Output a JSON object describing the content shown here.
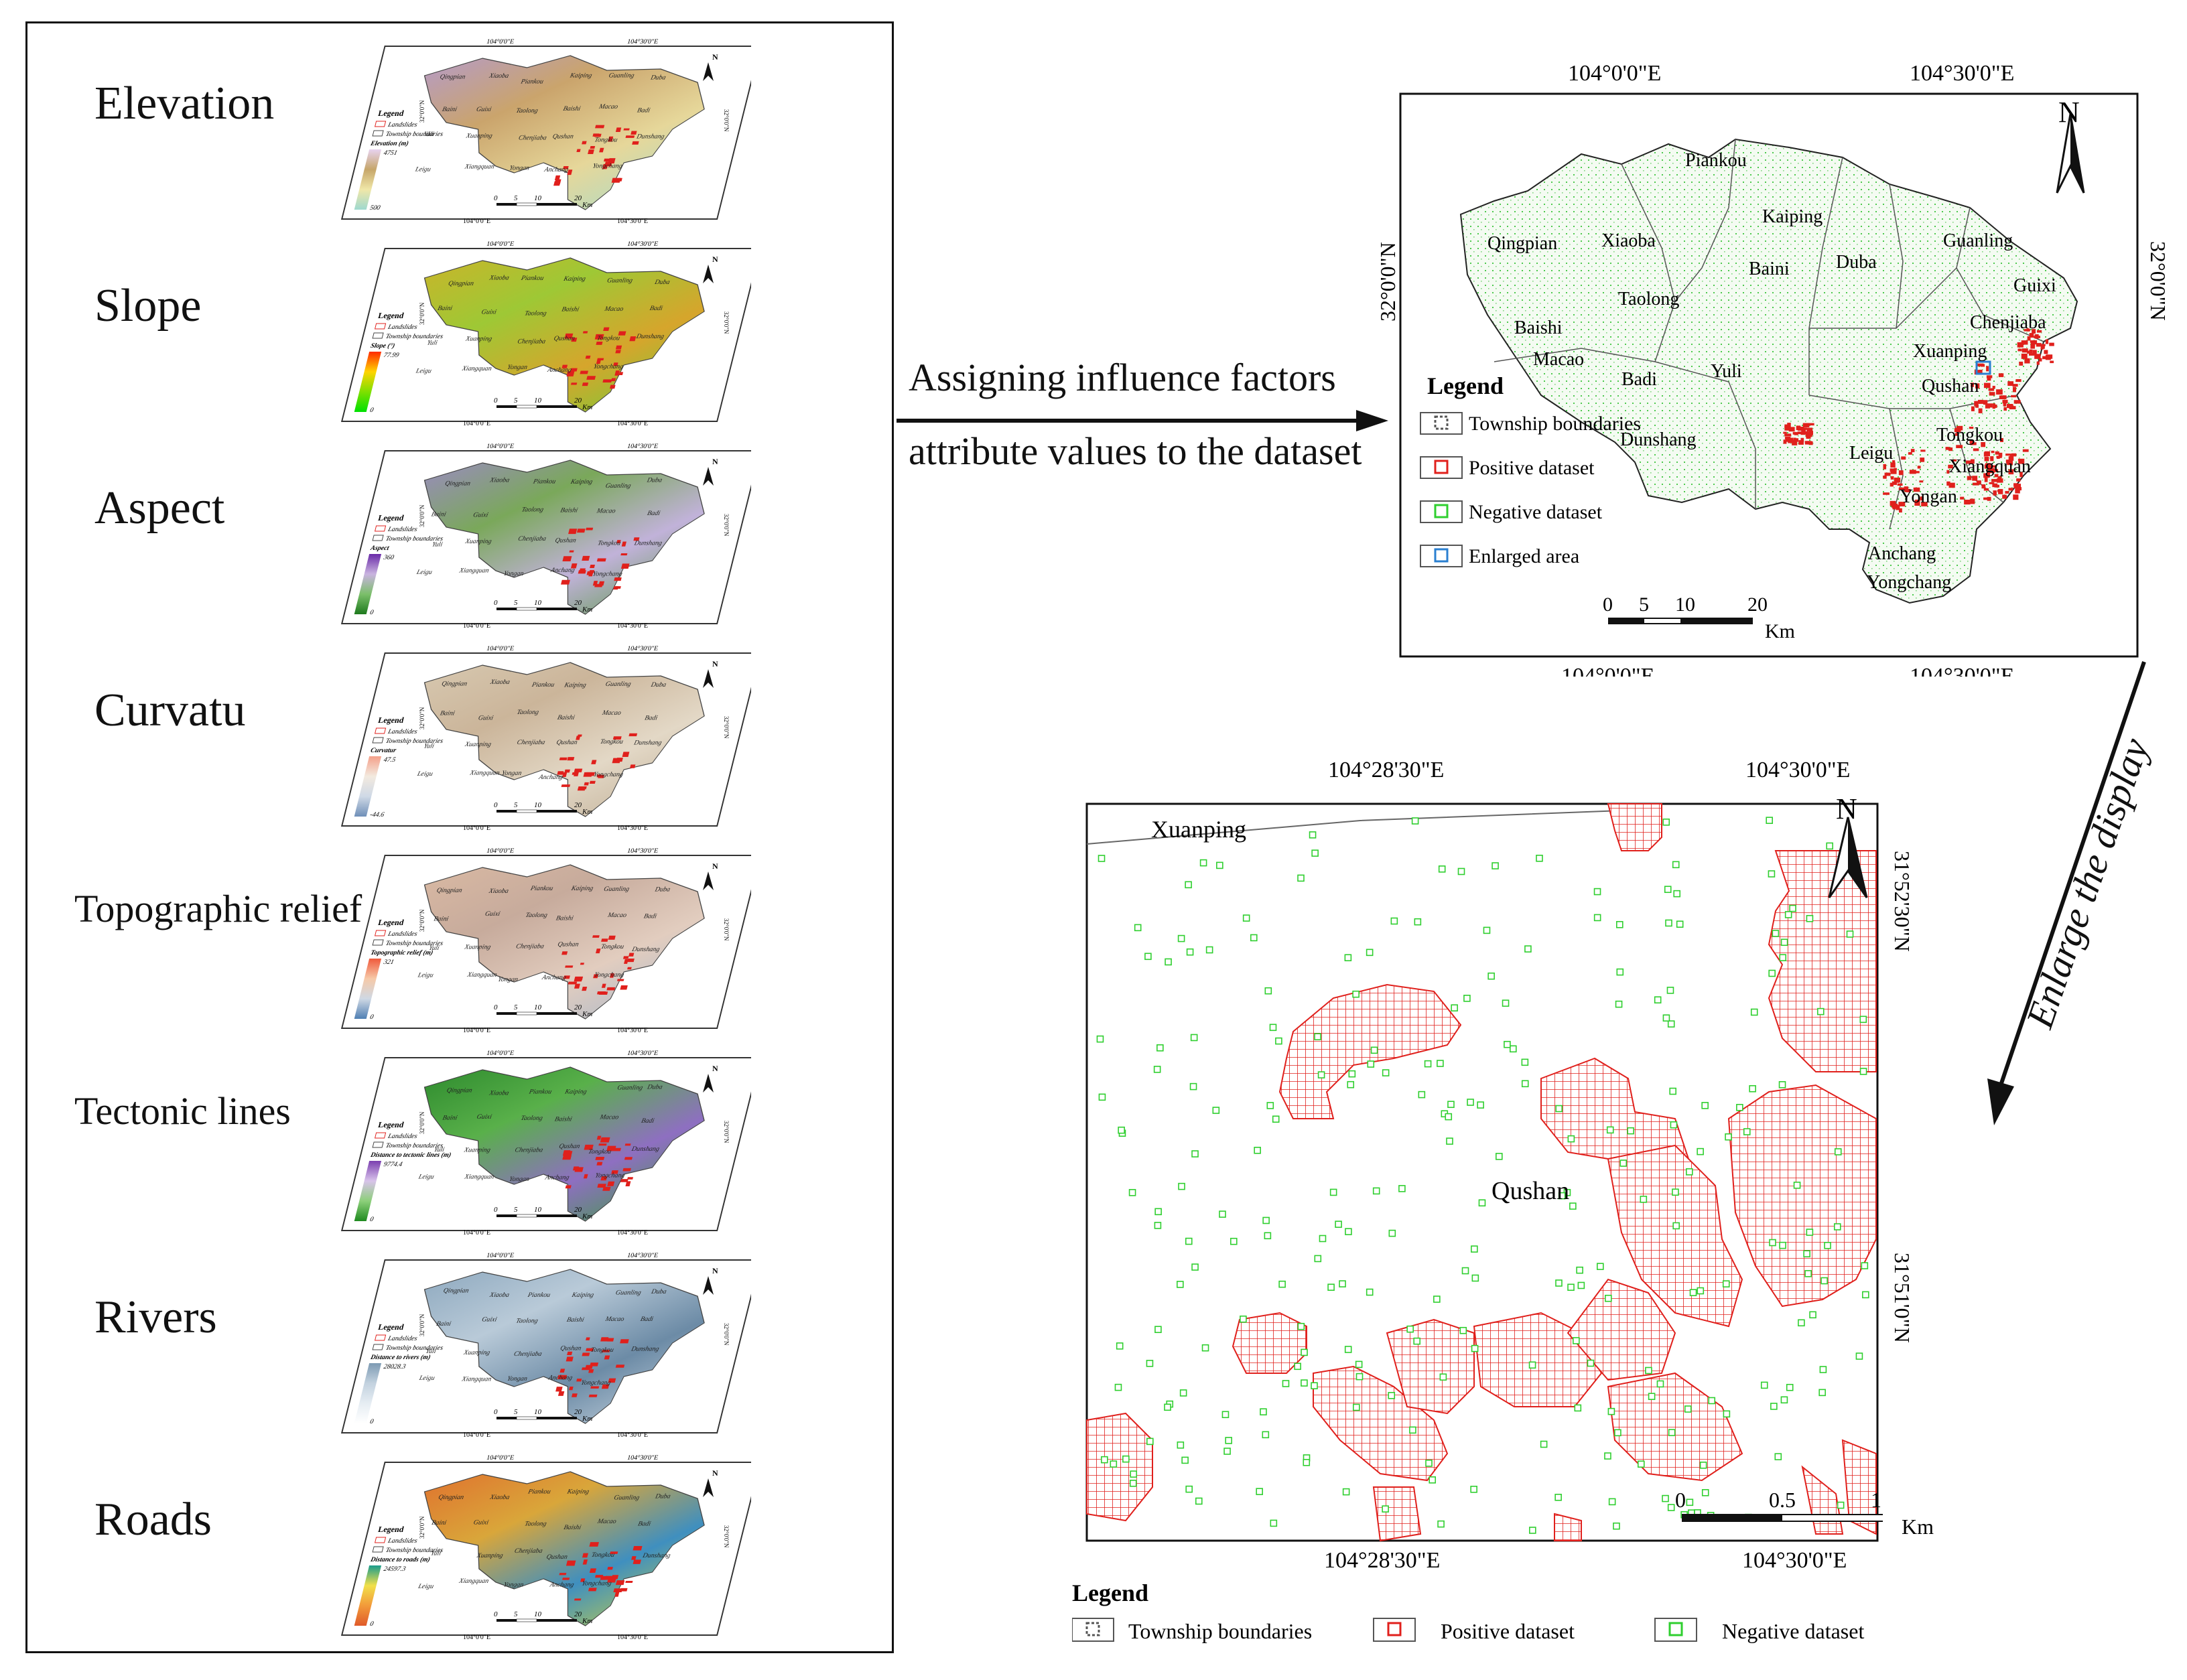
{
  "factors": [
    {
      "label": "Elevation",
      "legend_title": "Elevation (m)",
      "max": "4751",
      "min": "500",
      "ramp": [
        "#e8d3f0",
        "#c6a66a",
        "#f0e7a8",
        "#9ed9cf"
      ],
      "terrain": [
        "#b59bc9",
        "#caa46c",
        "#e6d79a",
        "#a7dccb"
      ]
    },
    {
      "label": "Slope",
      "legend_title": "Slope (°)",
      "max": "77.99",
      "min": "0",
      "ramp": [
        "#ff2a00",
        "#ffd400",
        "#7ee000",
        "#00e000"
      ],
      "terrain": [
        "#c9b52a",
        "#9ec835",
        "#d6a52c",
        "#6fcf3a"
      ]
    },
    {
      "label": "Aspect",
      "legend_title": "Aspect",
      "max": "360",
      "min": "0",
      "ramp": [
        "#6a2aa8",
        "#c9b3e0",
        "#7bbf6a",
        "#1d7a1d"
      ],
      "terrain": [
        "#9a8bc0",
        "#7aa85a",
        "#c1b2d9",
        "#5c9a48"
      ]
    },
    {
      "label": "Curvatu",
      "legend_title": "Curvatur",
      "max": "47.5",
      "min": "-44.6",
      "ramp": [
        "#f4a08a",
        "#f3eadf",
        "#cfd9e6",
        "#6f8fb8"
      ],
      "terrain": [
        "#d7c8b0",
        "#cbb59a",
        "#e3d8c6",
        "#bfae95"
      ]
    },
    {
      "label": "Topographic relief",
      "legend_title": "Topographic relief (m)",
      "max": "321",
      "min": "0",
      "ramp": [
        "#f05a3c",
        "#f6c9a8",
        "#cfd8e4",
        "#4f7fb3"
      ],
      "terrain": [
        "#d9b9a3",
        "#c7ab9c",
        "#e2cdbf",
        "#a8b8cb"
      ]
    },
    {
      "label": "Tectonic lines",
      "legend_title": "Distance to tectonic lines (m)",
      "max": "9774.4",
      "min": "0",
      "ramp": [
        "#7b3fb0",
        "#d8c3ea",
        "#8ccf7a",
        "#1f8a1f"
      ],
      "terrain": [
        "#2e8b2e",
        "#59b04a",
        "#8e6fc1",
        "#3aa03a"
      ]
    },
    {
      "label": "Rivers",
      "legend_title": "Distance to rivers (m)",
      "max": "28028.3",
      "min": "0",
      "ramp": [
        "#7d9ab3",
        "#c3d2df",
        "#e6edf3",
        "#ffffff"
      ],
      "terrain": [
        "#8ea9bf",
        "#b9cad8",
        "#6c8ba6",
        "#c8d5e0"
      ]
    },
    {
      "label": "Roads",
      "legend_title": "Distance to roads (m)",
      "max": "24597.3",
      "min": "0",
      "ramp": [
        "#1a9c8c",
        "#f1e04a",
        "#f29a3a",
        "#e05a2a"
      ],
      "terrain": [
        "#e0722e",
        "#d9a63a",
        "#3f8fbf",
        "#cfd43e"
      ]
    }
  ],
  "small_map": {
    "legend_title": "Legend",
    "legend_landslides": "Landslides",
    "legend_township": "Township boundaries",
    "top_left_coord": "104°0'0\"E",
    "top_right_coord": "104°30'0\"E",
    "bottom_left_coord": "104°0'0\"E",
    "bottom_right_coord": "104°30'0\"E",
    "left_coord": "32°0'0\"N",
    "right_coord": "32°0'0\"N",
    "north": "N",
    "scale_ticks": [
      "0",
      "5",
      "10",
      "20"
    ],
    "scale_unit": "Km",
    "townships": [
      "Qingpian",
      "Xiaoba",
      "Piankou",
      "Kaiping",
      "Guanling",
      "Duba",
      "Baini",
      "Guixi",
      "Taolong",
      "Baishi",
      "Macao",
      "Badi",
      "Yuli",
      "Xuanping",
      "Chenjiaba",
      "Qushan",
      "Tongkou",
      "Dunshang",
      "Leigu",
      "Xiangquan",
      "Yongan",
      "Anchang",
      "Yongchang"
    ]
  },
  "arrow_labels": {
    "line1": "Assigning influence factors",
    "line2": "attribute values to the dataset",
    "enlarge": "Enlarge the display"
  },
  "overview_map": {
    "top_coords": [
      "104°0'0\"E",
      "104°30'0\"E"
    ],
    "bottom_coords": [
      "104°0'0\"E",
      "104°30'0\"E"
    ],
    "left_coord": "32°0'0\"N",
    "right_coord": "32°0'0\"N",
    "north": "N",
    "legend_title": "Legend",
    "legend_items": [
      "Township boundaries",
      "Positive dataset",
      "Negative dataset",
      "Enlarged area"
    ],
    "scale_ticks": [
      "0",
      "5",
      "10",
      "20"
    ],
    "scale_unit": "Km",
    "townships": [
      {
        "name": "Piankou"
      },
      {
        "name": "Kaiping"
      },
      {
        "name": "Qingpian"
      },
      {
        "name": "Xiaoba"
      },
      {
        "name": "Guanling"
      },
      {
        "name": "Baini"
      },
      {
        "name": "Duba"
      },
      {
        "name": "Guixi"
      },
      {
        "name": "Taolong"
      },
      {
        "name": "Baishi"
      },
      {
        "name": "Chenjiaba"
      },
      {
        "name": "Macao"
      },
      {
        "name": "Badi"
      },
      {
        "name": "Yuli"
      },
      {
        "name": "Xuanping"
      },
      {
        "name": "Qushan"
      },
      {
        "name": "Tongkou"
      },
      {
        "name": "Dunshang"
      },
      {
        "name": "Leigu"
      },
      {
        "name": "Xiangquan"
      },
      {
        "name": "Yongan"
      },
      {
        "name": "Anchang"
      },
      {
        "name": "Yongchang"
      }
    ]
  },
  "zoom_map": {
    "top_coords": [
      "104°28'30\"E",
      "104°30'0\"E"
    ],
    "bottom_coords": [
      "104°28'30\"E",
      "104°30'0\"E"
    ],
    "left_coords": [
      "31°52'30\"N",
      "31°51'0\"N"
    ],
    "right_coords": [
      "31°52'30\"N",
      "31°51'0\"N"
    ],
    "north": "N",
    "labels": {
      "xuanping": "Xuanping",
      "qushan": "Qushan"
    },
    "scale_ticks": [
      "0",
      "0.5",
      "1"
    ],
    "scale_unit": "Km",
    "legend_title": "Legend",
    "legend_items": [
      "Township boundaries",
      "Positive dataset",
      "Negative dataset"
    ]
  },
  "colors": {
    "positive": "#e0201c",
    "negative": "#2fcf2f",
    "enlarged": "#2a7fd0",
    "boundary": "#555555"
  }
}
